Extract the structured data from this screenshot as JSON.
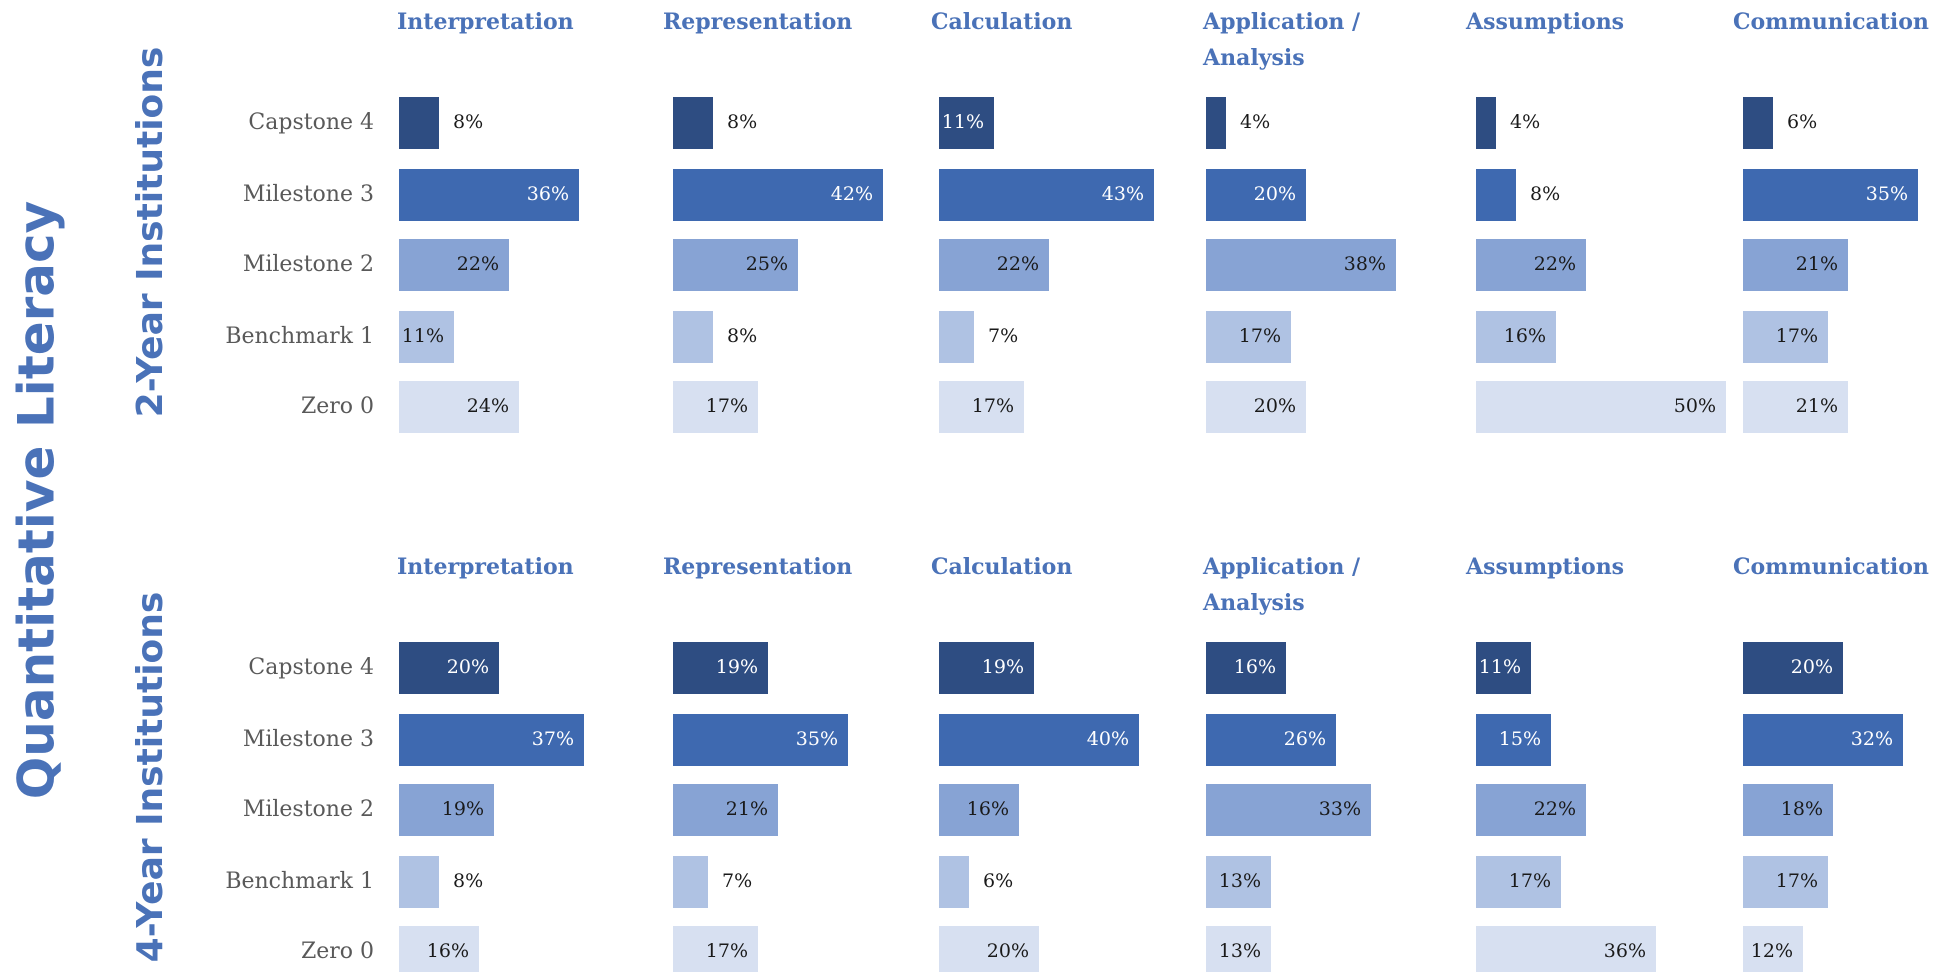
{
  "chart_data": {
    "type": "bar",
    "orientation": "horizontal",
    "title": "Quantitative Literacy",
    "categories": [
      "Capstone 4",
      "Milestone 3",
      "Milestone 2",
      "Benchmark 1",
      "Zero 0"
    ],
    "colors": [
      "#2e4d82",
      "#3e69b0",
      "#87a3d4",
      "#afc2e3",
      "#d7e0f1"
    ],
    "panels": [
      {
        "name": "2-Year Institutions",
        "groups": [
          {
            "title": "Interpretation",
            "values": [
              8,
              36,
              22,
              11,
              24
            ],
            "value_labels": [
              "8%",
              "36%",
              "22%",
              "11%",
              "24%"
            ]
          },
          {
            "title": "Representation",
            "values": [
              8,
              42,
              25,
              8,
              17
            ],
            "value_labels": [
              "8%",
              "42%",
              "25%",
              "8%",
              "17%"
            ]
          },
          {
            "title": "Calculation",
            "values": [
              11,
              43,
              22,
              7,
              17
            ],
            "value_labels": [
              "11%",
              "43%",
              "22%",
              "7%",
              "17%"
            ]
          },
          {
            "title": "Application / Analysis",
            "values": [
              4,
              20,
              38,
              17,
              20
            ],
            "value_labels": [
              "4%",
              "20%",
              "38%",
              "17%",
              "20%"
            ]
          },
          {
            "title": "Assumptions",
            "values": [
              4,
              8,
              22,
              16,
              50
            ],
            "value_labels": [
              "4%",
              "8%",
              "22%",
              "16%",
              "50%"
            ]
          },
          {
            "title": "Communication",
            "values": [
              6,
              35,
              21,
              17,
              21
            ],
            "value_labels": [
              "6%",
              "35%",
              "21%",
              "17%",
              "21%"
            ]
          }
        ]
      },
      {
        "name": "4-Year Institutions",
        "groups": [
          {
            "title": "Interpretation",
            "values": [
              20,
              37,
              19,
              8,
              16
            ],
            "value_labels": [
              "20%",
              "37%",
              "19%",
              "8%",
              "16%"
            ]
          },
          {
            "title": "Representation",
            "values": [
              19,
              35,
              21,
              7,
              17
            ],
            "value_labels": [
              "19%",
              "35%",
              "21%",
              "7%",
              "17%"
            ]
          },
          {
            "title": "Calculation",
            "values": [
              19,
              40,
              16,
              6,
              20
            ],
            "value_labels": [
              "19%",
              "40%",
              "16%",
              "6%",
              "20%"
            ]
          },
          {
            "title": "Application / Analysis",
            "values": [
              16,
              26,
              33,
              13,
              13
            ],
            "value_labels": [
              "16%",
              "26%",
              "33%",
              "13%",
              "13%"
            ]
          },
          {
            "title": "Assumptions",
            "values": [
              11,
              15,
              22,
              17,
              36
            ],
            "value_labels": [
              "11%",
              "15%",
              "22%",
              "17%",
              "36%"
            ]
          },
          {
            "title": "Communication",
            "values": [
              20,
              32,
              18,
              17,
              12
            ],
            "value_labels": [
              "20%",
              "32%",
              "18%",
              "17%",
              "12%"
            ]
          }
        ]
      }
    ]
  }
}
